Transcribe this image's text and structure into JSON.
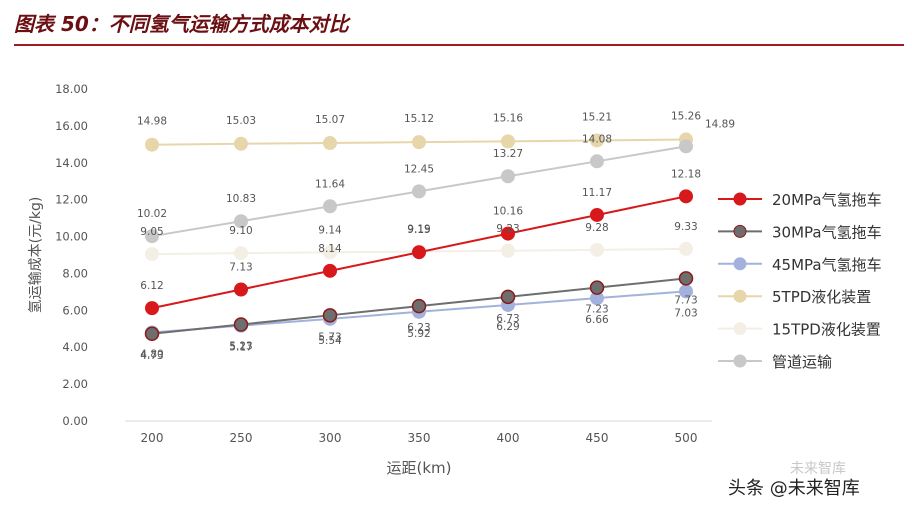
{
  "header": {
    "title": "图表 50：不同氢气运输方式成本对比"
  },
  "watermark": {
    "text": "头条 @未来智库",
    "faint": "未来智库"
  },
  "chart_data": {
    "type": "line",
    "xlabel": "运距(km)",
    "ylabel": "氢运输成本(元/kg)",
    "ylim": [
      0,
      18
    ],
    "yticks": [
      "0.00",
      "2.00",
      "4.00",
      "6.00",
      "8.00",
      "10.00",
      "12.00",
      "14.00",
      "16.00",
      "18.00"
    ],
    "x": [
      200,
      250,
      300,
      350,
      400,
      450,
      500
    ],
    "grid": false,
    "legend_position": "right",
    "series": [
      {
        "name": "20MPa气氢拖车",
        "color": "#d7191c",
        "values": [
          6.12,
          7.13,
          8.14,
          9.15,
          10.16,
          11.17,
          12.18
        ],
        "labels": [
          "6.12",
          "7.13",
          "8.14",
          "9.15",
          "10.16",
          "11.17",
          "12.18"
        ]
      },
      {
        "name": "30MPa气氢拖车",
        "color": "#6e6e6e",
        "values": [
          4.73,
          5.23,
          5.73,
          6.23,
          6.73,
          7.23,
          7.73
        ],
        "labels": [
          "4.73",
          "5.23",
          "5.73",
          "6.23",
          "6.73",
          "7.23",
          "7.73"
        ]
      },
      {
        "name": "45MPa气氢拖车",
        "color": "#a3b2dd",
        "values": [
          4.8,
          5.17,
          5.54,
          5.92,
          6.29,
          6.66,
          7.03
        ],
        "labels": [
          "4.80",
          "5.17",
          "5.54",
          "5.92",
          "6.29",
          "6.66",
          "7.03"
        ]
      },
      {
        "name": "5TPD液化装置",
        "color": "#e8d6ab",
        "values": [
          14.98,
          15.03,
          15.07,
          15.12,
          15.16,
          15.21,
          15.26
        ],
        "labels": [
          "14.98",
          "15.03",
          "15.07",
          "15.12",
          "15.16",
          "15.21",
          "15.26"
        ]
      },
      {
        "name": "15TPD液化装置",
        "color": "#f3efe5",
        "values": [
          9.05,
          9.1,
          9.14,
          9.19,
          9.23,
          9.28,
          9.33
        ],
        "labels": [
          "9.05",
          "9.10",
          "9.14",
          "9.19",
          "9.23",
          "9.28",
          "9.33"
        ]
      },
      {
        "name": "管道运输",
        "color": "#c8c8c8",
        "values": [
          10.02,
          10.83,
          11.64,
          12.45,
          13.27,
          14.08,
          14.89
        ],
        "labels": [
          "10.02",
          "10.83",
          "11.64",
          "12.45",
          "13.27",
          "14.08",
          "14.89"
        ]
      }
    ]
  }
}
